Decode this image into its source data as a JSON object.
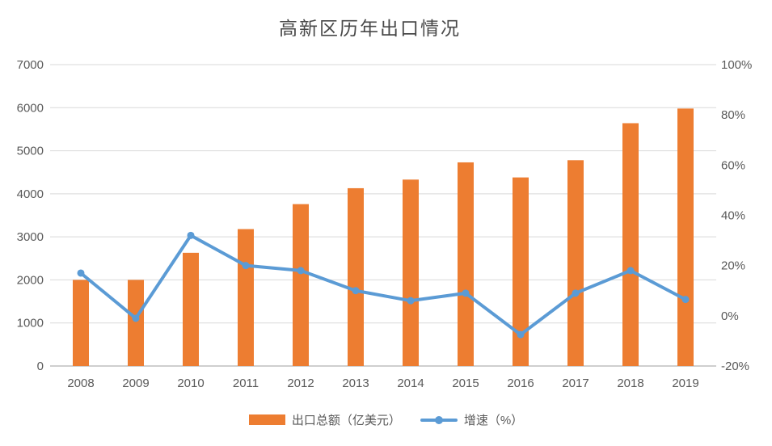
{
  "title": "高新区历年出口情况",
  "colors": {
    "bar": "#ED7D31",
    "line": "#5B9BD5",
    "gridline": "#D9D9D9",
    "axis_line": "#BFBFBF",
    "tick_text": "#595959",
    "title_text": "#484848",
    "background": "#FFFFFF"
  },
  "chart_data": {
    "type": "combo",
    "title": "高新区历年出口情况",
    "categories": [
      "2008",
      "2009",
      "2010",
      "2011",
      "2012",
      "2013",
      "2014",
      "2015",
      "2016",
      "2017",
      "2018",
      "2019"
    ],
    "series": [
      {
        "name": "出口总额（亿美元）",
        "type": "bar",
        "axis": "left",
        "color": "#ED7D31",
        "values": [
          2000,
          2000,
          2630,
          3180,
          3760,
          4130,
          4330,
          4730,
          4380,
          4780,
          5640,
          5980
        ]
      },
      {
        "name": "增速（%）",
        "type": "line",
        "axis": "right",
        "color": "#5B9BD5",
        "values": [
          17,
          -1,
          32,
          20,
          18,
          10,
          6,
          9,
          -7.5,
          9,
          18,
          6.5
        ]
      }
    ],
    "left_axis": {
      "min": 0,
      "max": 7000,
      "step": 1000,
      "tick_labels": [
        "0",
        "1000",
        "2000",
        "3000",
        "4000",
        "5000",
        "6000",
        "7000"
      ]
    },
    "right_axis": {
      "min": -20,
      "max": 100,
      "step": 20,
      "tick_labels": [
        "-20%",
        "0%",
        "20%",
        "40%",
        "60%",
        "80%",
        "100%"
      ]
    },
    "grid": true,
    "legend_position": "bottom",
    "legend": [
      "出口总额（亿美元）",
      "增速（%）"
    ]
  }
}
